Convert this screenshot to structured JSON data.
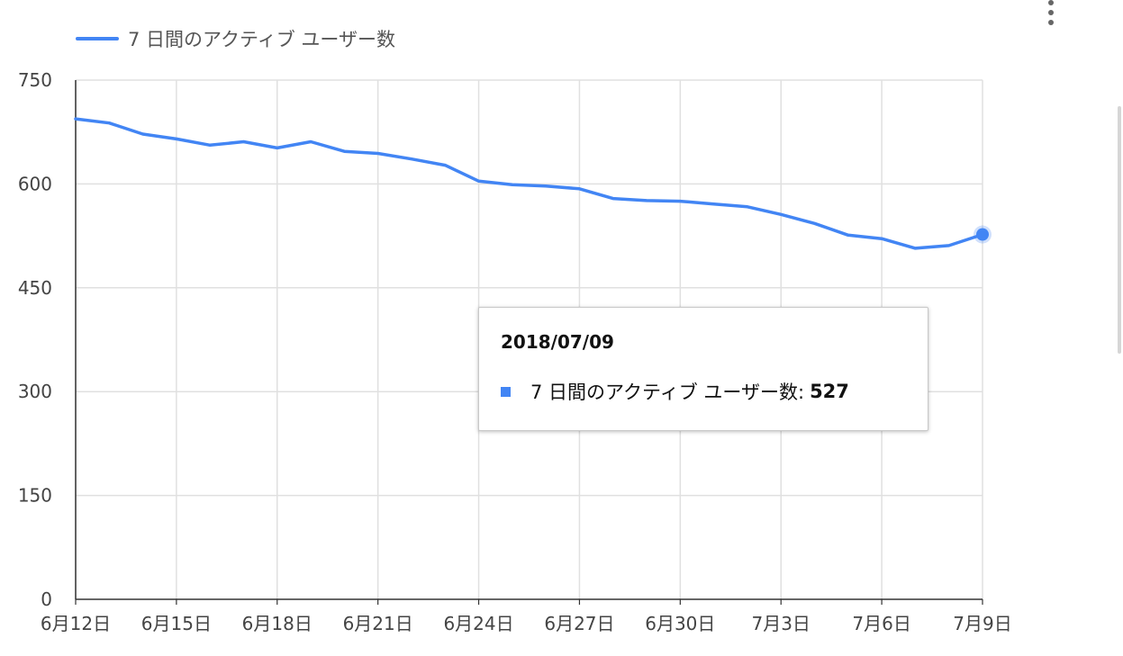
{
  "legend": {
    "label": "7 日間のアクティブ ユーザー数"
  },
  "colors": {
    "series": "#4285f4",
    "grid": "#e0e0e0",
    "axis": "#333333",
    "tick_text": "#444444"
  },
  "icons": {
    "menu": "more-vert-icon"
  },
  "tooltip": {
    "date": "2018/07/09",
    "series_label": "7 日間のアクティブ ユーザー数:",
    "value": "527"
  },
  "chart_data": {
    "type": "line",
    "title": "",
    "xlabel": "",
    "ylabel": "",
    "ylim": [
      0,
      750
    ],
    "y_ticks": [
      0,
      150,
      300,
      450,
      600,
      750
    ],
    "x": [
      "6月12日",
      "6月13日",
      "6月14日",
      "6月15日",
      "6月16日",
      "6月17日",
      "6月18日",
      "6月19日",
      "6月20日",
      "6月21日",
      "6月22日",
      "6月23日",
      "6月24日",
      "6月25日",
      "6月26日",
      "6月27日",
      "6月28日",
      "6月29日",
      "6月30日",
      "7月1日",
      "7月2日",
      "7月3日",
      "7月4日",
      "7月5日",
      "7月6日",
      "7月7日",
      "7月8日",
      "7月9日"
    ],
    "x_tick_labels": [
      "6月12日",
      "6月15日",
      "6月18日",
      "6月21日",
      "6月24日",
      "6月27日",
      "6月30日",
      "7月3日",
      "7月6日",
      "7月9日"
    ],
    "x_tick_every": 3,
    "grid": true,
    "legend_position": "top-left",
    "series": [
      {
        "name": "7 日間のアクティブ ユーザー数",
        "values": [
          694,
          688,
          672,
          665,
          656,
          661,
          652,
          661,
          647,
          644,
          636,
          627,
          604,
          599,
          597,
          593,
          579,
          576,
          575,
          571,
          567,
          556,
          543,
          526,
          521,
          507,
          511,
          527
        ]
      }
    ],
    "highlighted_index": 27
  }
}
